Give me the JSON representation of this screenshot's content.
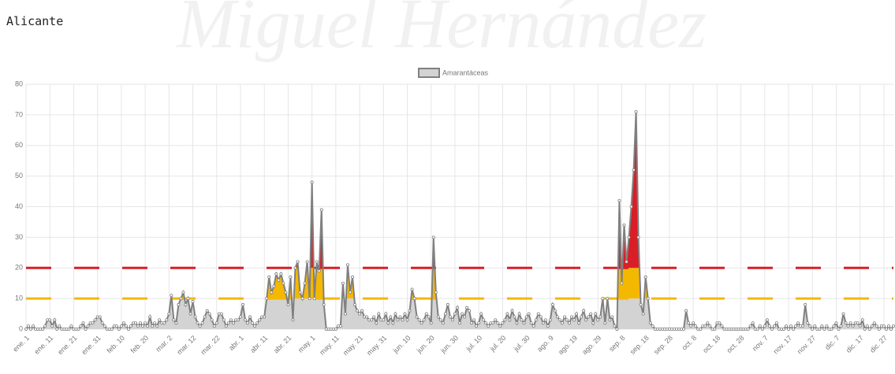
{
  "chart_data": {
    "type": "area",
    "title": "Alicante",
    "watermark": "Miguel Hernández",
    "ylim": [
      0,
      80
    ],
    "yticks": [
      0,
      10,
      20,
      30,
      40,
      50,
      60,
      70,
      80
    ],
    "grid": true,
    "thresholds": [
      {
        "value": 10,
        "color": "#f5b800"
      },
      {
        "value": 20,
        "color": "#d91e27"
      }
    ],
    "categories": [
      "ene. 1",
      null,
      null,
      null,
      null,
      null,
      null,
      null,
      null,
      null,
      "ene. 11",
      null,
      null,
      null,
      null,
      null,
      null,
      null,
      null,
      null,
      "ene. 21",
      null,
      null,
      null,
      null,
      null,
      null,
      null,
      null,
      null,
      "ene. 31",
      null,
      null,
      null,
      null,
      null,
      null,
      null,
      null,
      null,
      "feb. 10",
      null,
      null,
      null,
      null,
      null,
      null,
      null,
      null,
      null,
      "feb. 20",
      null,
      null,
      null,
      null,
      null,
      null,
      null,
      null,
      null,
      "mar. 2",
      null,
      null,
      null,
      null,
      null,
      null,
      null,
      null,
      null,
      "mar. 12",
      null,
      null,
      null,
      null,
      null,
      null,
      null,
      null,
      null,
      "mar. 22",
      null,
      null,
      null,
      null,
      null,
      null,
      null,
      null,
      null,
      "abr. 1",
      null,
      null,
      null,
      null,
      null,
      null,
      null,
      null,
      null,
      "abr. 11",
      null,
      null,
      null,
      null,
      null,
      null,
      null,
      null,
      null,
      "abr. 21",
      null,
      null,
      null,
      null,
      null,
      null,
      null,
      null,
      null,
      "may. 1",
      null,
      null,
      null,
      null,
      null,
      null,
      null,
      null,
      null,
      "may. 11",
      null,
      null,
      null,
      null,
      null,
      null,
      null,
      null,
      null,
      "may. 21",
      null,
      null,
      null,
      null,
      null,
      null,
      null,
      null,
      null,
      "may. 31",
      null,
      null,
      null,
      null,
      null,
      null,
      null,
      null,
      null,
      "jun. 10",
      null,
      null,
      null,
      null,
      null,
      null,
      null,
      null,
      null,
      "jun. 20",
      null,
      null,
      null,
      null,
      null,
      null,
      null,
      null,
      null,
      "jun. 30",
      null,
      null,
      null,
      null,
      null,
      null,
      null,
      null,
      null,
      "jul. 10",
      null,
      null,
      null,
      null,
      null,
      null,
      null,
      null,
      null,
      "jul. 20",
      null,
      null,
      null,
      null,
      null,
      null,
      null,
      null,
      null,
      "jul. 30",
      null,
      null,
      null,
      null,
      null,
      null,
      null,
      null,
      null,
      "ago. 9",
      null,
      null,
      null,
      null,
      null,
      null,
      null,
      null,
      null,
      "ago. 19",
      null,
      null,
      null,
      null,
      null,
      null,
      null,
      null,
      null,
      "ago. 29",
      null,
      null,
      null,
      null,
      null,
      null,
      null,
      null,
      null,
      "sep. 8",
      null,
      null,
      null,
      null,
      null,
      null,
      null,
      null,
      null,
      "sep. 18",
      null,
      null,
      null,
      null,
      null,
      null,
      null,
      null,
      null,
      "sep. 28",
      null,
      null,
      null,
      null,
      null,
      null,
      null,
      null,
      null,
      "oct. 8",
      null,
      null,
      null,
      null,
      null,
      null,
      null,
      null,
      null,
      "oct. 18",
      null,
      null,
      null,
      null,
      null,
      null,
      null,
      null,
      null,
      "oct. 28",
      null,
      null,
      null,
      null,
      null,
      null,
      null,
      null,
      null,
      "nov. 7",
      null,
      null,
      null,
      null,
      null,
      null,
      null,
      null,
      null,
      "nov. 17",
      null,
      null,
      null,
      null,
      null,
      null,
      null,
      null,
      null,
      "nov. 27",
      null,
      null,
      null,
      null,
      null,
      null,
      null,
      null,
      null,
      "dic. 7",
      null,
      null,
      null,
      null,
      null,
      null,
      null,
      null,
      null,
      "dic. 17",
      null,
      null,
      null,
      null,
      null,
      null,
      null,
      null,
      null,
      "dic. 27",
      null,
      null,
      null,
      null
    ],
    "series": [
      {
        "name": "Amarantáceas",
        "color": "#808080",
        "fill": "#d3d3d3",
        "values": [
          0,
          1,
          0,
          1,
          0,
          0,
          0,
          0,
          1,
          3,
          3,
          1,
          3,
          0,
          1,
          0,
          0,
          0,
          0,
          1,
          0,
          0,
          0,
          1,
          2,
          0,
          1,
          2,
          2,
          3,
          4,
          4,
          2,
          1,
          0,
          0,
          0,
          1,
          1,
          0,
          1,
          2,
          1,
          0,
          1,
          2,
          2,
          1,
          2,
          1,
          2,
          1,
          4,
          1,
          2,
          1,
          3,
          2,
          2,
          3,
          5,
          11,
          3,
          2,
          8,
          10,
          12,
          8,
          10,
          5,
          9,
          4,
          2,
          1,
          2,
          4,
          6,
          5,
          3,
          1,
          2,
          5,
          5,
          3,
          1,
          2,
          3,
          2,
          3,
          3,
          4,
          8,
          3,
          2,
          4,
          2,
          1,
          2,
          3,
          4,
          4,
          10,
          17,
          12,
          14,
          18,
          16,
          18,
          15,
          12,
          8,
          17,
          3,
          20,
          22,
          12,
          10,
          15,
          22,
          10,
          48,
          10,
          22,
          19,
          39,
          8,
          0,
          0,
          0,
          0,
          0,
          1,
          1,
          15,
          5,
          21,
          12,
          17,
          8,
          6,
          5,
          6,
          4,
          4,
          3,
          3,
          4,
          2,
          5,
          3,
          3,
          5,
          2,
          4,
          2,
          5,
          3,
          4,
          3,
          5,
          3,
          6,
          13,
          10,
          4,
          3,
          2,
          3,
          5,
          4,
          2,
          30,
          12,
          4,
          3,
          2,
          5,
          8,
          4,
          3,
          5,
          7,
          2,
          5,
          4,
          7,
          6,
          2,
          3,
          1,
          2,
          5,
          3,
          2,
          1,
          2,
          2,
          3,
          2,
          1,
          2,
          3,
          5,
          3,
          6,
          4,
          2,
          5,
          3,
          2,
          4,
          5,
          2,
          1,
          3,
          5,
          4,
          2,
          3,
          1,
          3,
          8,
          6,
          4,
          3,
          2,
          4,
          3,
          2,
          4,
          3,
          5,
          2,
          4,
          6,
          3,
          4,
          5,
          2,
          5,
          3,
          4,
          10,
          2,
          10,
          3,
          4,
          1,
          0,
          42,
          15,
          34,
          22,
          30,
          40,
          52,
          71,
          30,
          8,
          5,
          17,
          10,
          2,
          1,
          0,
          0,
          0,
          0,
          0,
          0,
          0,
          0,
          0,
          0,
          0,
          0,
          0,
          6,
          2,
          1,
          2,
          1,
          0,
          0,
          1,
          1,
          2,
          1,
          0,
          0,
          2,
          2,
          1,
          0,
          0,
          0,
          0,
          0,
          0,
          0,
          0,
          0,
          0,
          0,
          1,
          2,
          0,
          0,
          1,
          0,
          1,
          3,
          1,
          0,
          1,
          2,
          0,
          0,
          0,
          1,
          0,
          1,
          0,
          1,
          2,
          1,
          1,
          8,
          2,
          1,
          0,
          1,
          0,
          0,
          1,
          0,
          1,
          0,
          0,
          1,
          2,
          0,
          1,
          5,
          2,
          1,
          2,
          1,
          2,
          2,
          1,
          3,
          0,
          1,
          0,
          1,
          2,
          1,
          0,
          1,
          1,
          0,
          1,
          0,
          1
        ]
      }
    ]
  }
}
